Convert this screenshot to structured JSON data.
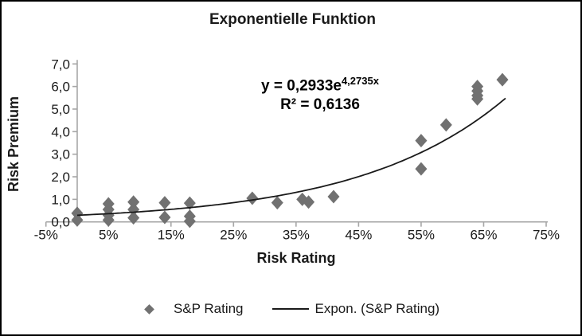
{
  "title": "Exponentielle Funktion",
  "equation": {
    "base": "y = 0,2933e",
    "exponent": "4,2735x",
    "r_squared": "R² = 0,6136"
  },
  "axes": {
    "x_title": "Risk Rating",
    "y_title": "Risk Premium"
  },
  "legend": {
    "items": [
      {
        "marker": "diamond",
        "label": "S&P Rating"
      },
      {
        "marker": "line",
        "label": "Expon. (S&P Rating)"
      }
    ]
  },
  "colors": {
    "marker": "#717171",
    "axis": "#a6a6a6",
    "trendline": "#1a1a1a",
    "text": "#1a1a1a"
  },
  "chart_data": {
    "type": "scatter",
    "title": "Exponentielle Funktion",
    "xlabel": "Risk Rating",
    "ylabel": "Risk Premium",
    "xlim": [
      -5,
      75
    ],
    "ylim": [
      0,
      7
    ],
    "grid": false,
    "legend_position": "bottom",
    "x_ticks": [
      {
        "value": -5,
        "label": "-5%"
      },
      {
        "value": 5,
        "label": "5%"
      },
      {
        "value": 15,
        "label": "15%"
      },
      {
        "value": 25,
        "label": "25%"
      },
      {
        "value": 35,
        "label": "35%"
      },
      {
        "value": 45,
        "label": "45%"
      },
      {
        "value": 55,
        "label": "55%"
      },
      {
        "value": 65,
        "label": "65%"
      },
      {
        "value": 75,
        "label": "75%"
      }
    ],
    "y_ticks": [
      {
        "value": 0,
        "label": "0,0"
      },
      {
        "value": 1,
        "label": "1,0"
      },
      {
        "value": 2,
        "label": "2,0"
      },
      {
        "value": 3,
        "label": "3,0"
      },
      {
        "value": 4,
        "label": "4,0"
      },
      {
        "value": 5,
        "label": "5,0"
      },
      {
        "value": 6,
        "label": "6,0"
      },
      {
        "value": 7,
        "label": "7,0"
      }
    ],
    "series": [
      {
        "name": "S&P Rating",
        "marker": "diamond",
        "points_x_pct_y_premium": [
          [
            0,
            0.38
          ],
          [
            0,
            0.08
          ],
          [
            5,
            0.8
          ],
          [
            5,
            0.55
          ],
          [
            5,
            0.3
          ],
          [
            5,
            0.08
          ],
          [
            9,
            0.88
          ],
          [
            9,
            0.55
          ],
          [
            9,
            0.18
          ],
          [
            14,
            0.85
          ],
          [
            14,
            0.2
          ],
          [
            18,
            0.83
          ],
          [
            18,
            0.25
          ],
          [
            18,
            0.03
          ],
          [
            28,
            1.05
          ],
          [
            32,
            0.85
          ],
          [
            36,
            1.0
          ],
          [
            37,
            0.88
          ],
          [
            41,
            1.12
          ],
          [
            55,
            3.6
          ],
          [
            55,
            2.35
          ],
          [
            59,
            4.3
          ],
          [
            64,
            6.0
          ],
          [
            64,
            5.8
          ],
          [
            64,
            5.6
          ],
          [
            64,
            5.45
          ],
          [
            68,
            6.3
          ]
        ]
      }
    ],
    "trendline": {
      "name": "Expon. (S&P Rating)",
      "type": "exponential",
      "a": 0.2933,
      "b": 4.2735,
      "r_squared": 0.6136,
      "x_range_pct": [
        0,
        68.5
      ]
    }
  }
}
